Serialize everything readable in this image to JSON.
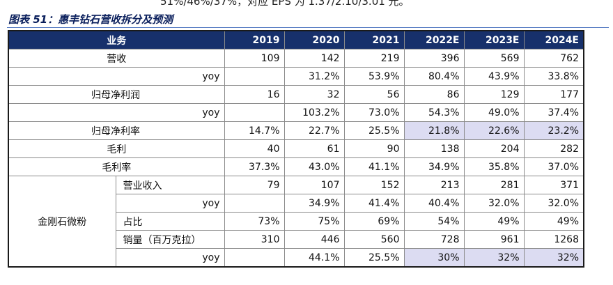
{
  "top_text": "51%/46%/37%，对应 EPS 为 1.37/2.10/3.01 元。",
  "caption": "图表 51：惠丰钻石营收拆分及预测",
  "header": [
    "业务",
    "2019",
    "2020",
    "2021",
    "2022E",
    "2023E",
    "2024E"
  ],
  "rows": {
    "revenue": {
      "label": "营收",
      "values": [
        "109",
        "142",
        "219",
        "396",
        "569",
        "762"
      ]
    },
    "revenue_yoy": {
      "label": "yoy",
      "values": [
        "",
        "31.2%",
        "53.9%",
        "80.4%",
        "43.9%",
        "33.8%"
      ]
    },
    "net_profit": {
      "label": "归母净利润",
      "values": [
        "16",
        "32",
        "56",
        "86",
        "129",
        "177"
      ]
    },
    "net_profit_yoy": {
      "label": "yoy",
      "values": [
        "",
        "103.2%",
        "73.0%",
        "54.3%",
        "49.0%",
        "37.4%"
      ]
    },
    "net_margin": {
      "label": "归母净利率",
      "values": [
        "14.7%",
        "22.7%",
        "25.5%",
        "21.8%",
        "22.6%",
        "23.2%"
      ]
    },
    "gross_profit": {
      "label": "毛利",
      "values": [
        "40",
        "61",
        "90",
        "138",
        "204",
        "282"
      ]
    },
    "gross_margin": {
      "label": "毛利率",
      "values": [
        "37.3%",
        "43.0%",
        "41.1%",
        "34.9%",
        "35.8%",
        "37.0%"
      ]
    }
  },
  "segment": {
    "label": "金刚石微粉",
    "sub": {
      "seg_revenue": {
        "label": "营业收入",
        "values": [
          "79",
          "107",
          "152",
          "213",
          "281",
          "371"
        ]
      },
      "seg_revenue_yoy": {
        "label": "yoy",
        "values": [
          "",
          "34.9%",
          "41.4%",
          "40.4%",
          "32.0%",
          "32.0%"
        ]
      },
      "share": {
        "label": "占比",
        "values": [
          "73%",
          "75%",
          "69%",
          "54%",
          "49%",
          "49%"
        ]
      },
      "volume": {
        "label": "销量（百万克拉）",
        "values": [
          "310",
          "446",
          "560",
          "728",
          "961",
          "1268"
        ]
      },
      "volume_yoy": {
        "label": "yoy",
        "values": [
          "",
          "44.1%",
          "25.5%",
          "30%",
          "32%",
          "32%"
        ]
      }
    }
  }
}
